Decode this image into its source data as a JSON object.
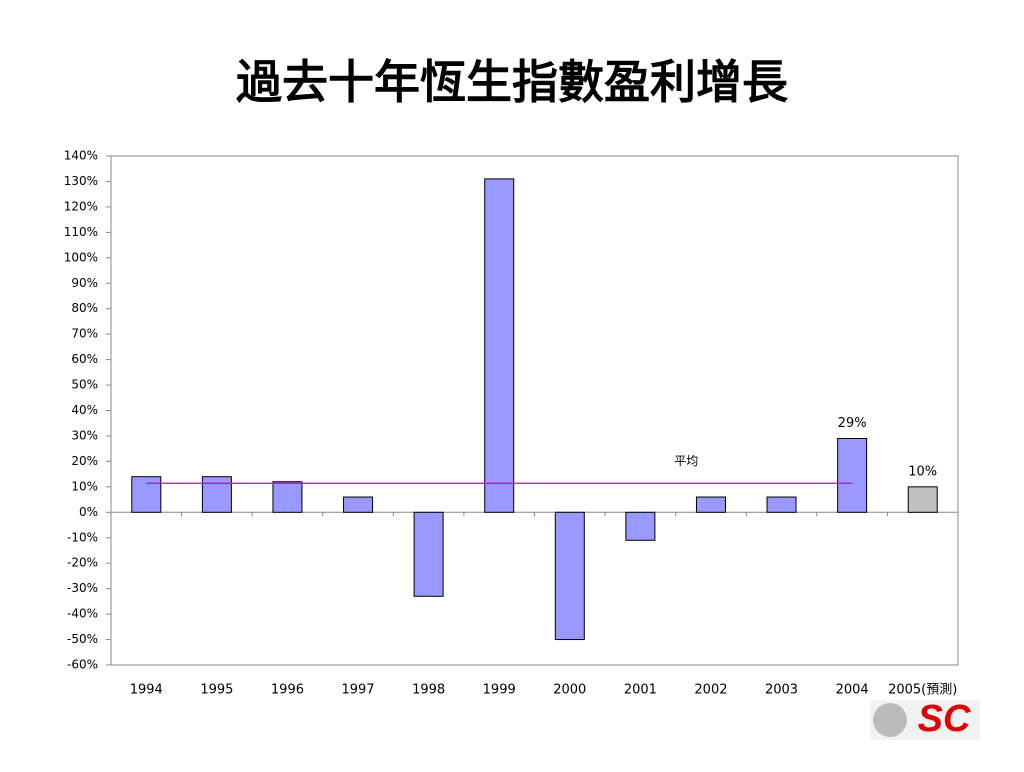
{
  "chart_data": {
    "type": "bar",
    "title": "過去十年恆生指數盈利增長",
    "categories": [
      "1994",
      "1995",
      "1996",
      "1997",
      "1998",
      "1999",
      "2000",
      "2001",
      "2002",
      "2003",
      "2004",
      "2005(預測)"
    ],
    "values": [
      14,
      14,
      12,
      6,
      -33,
      131,
      -50,
      -11,
      6,
      6,
      29,
      10
    ],
    "value_labels": [
      null,
      null,
      null,
      null,
      null,
      null,
      null,
      null,
      null,
      null,
      "29%",
      "10%"
    ],
    "colors": [
      "#9999ff",
      "#9999ff",
      "#9999ff",
      "#9999ff",
      "#9999ff",
      "#9999ff",
      "#9999ff",
      "#9999ff",
      "#9999ff",
      "#9999ff",
      "#9999ff",
      "#c0c0c0"
    ],
    "average": {
      "label": "平均",
      "value": 11.4,
      "color": "#cc00cc"
    },
    "ylim": [
      -60,
      140
    ],
    "yticks": [
      {
        "value": -60,
        "label": "-60%"
      },
      {
        "value": -50,
        "label": "-50%"
      },
      {
        "value": -40,
        "label": "-40%"
      },
      {
        "value": -30,
        "label": "-30%"
      },
      {
        "value": -20,
        "label": "-20%"
      },
      {
        "value": -10,
        "label": "-10%"
      },
      {
        "value": 0,
        "label": "0%"
      },
      {
        "value": 10,
        "label": "10%"
      },
      {
        "value": 20,
        "label": "20%"
      },
      {
        "value": 30,
        "label": "30%"
      },
      {
        "value": 40,
        "label": "40%"
      },
      {
        "value": 50,
        "label": "50%"
      },
      {
        "value": 60,
        "label": "60%"
      },
      {
        "value": 70,
        "label": "70%"
      },
      {
        "value": 80,
        "label": "80%"
      },
      {
        "value": 90,
        "label": "90%"
      },
      {
        "value": 100,
        "label": "100%"
      },
      {
        "value": 110,
        "label": "110%"
      },
      {
        "value": 120,
        "label": "120%"
      },
      {
        "value": 130,
        "label": "130%"
      },
      {
        "value": 140,
        "label": "140%"
      }
    ],
    "grid": false
  },
  "logo": "SC"
}
